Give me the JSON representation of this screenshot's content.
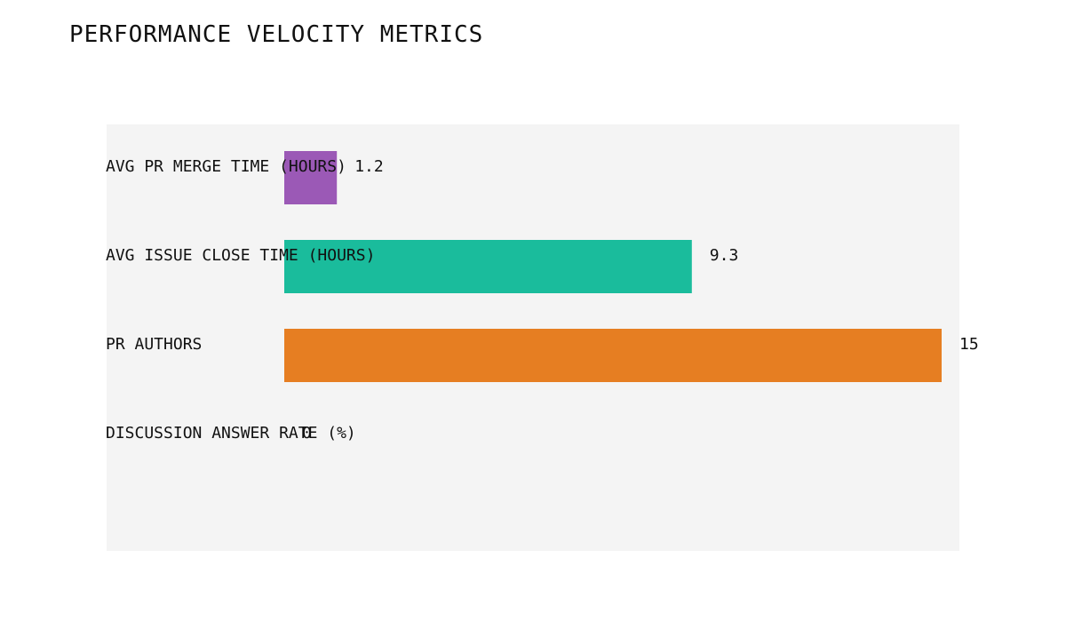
{
  "chart_data": {
    "type": "bar",
    "orientation": "horizontal",
    "title": "PERFORMANCE VELOCITY METRICS",
    "categories": [
      "AVG PR MERGE TIME (HOURS)",
      "AVG ISSUE CLOSE TIME (HOURS)",
      "PR AUTHORS",
      "DISCUSSION ANSWER RATE (%)"
    ],
    "values": [
      1.2,
      9.3,
      15,
      0
    ],
    "value_labels": [
      "1.2",
      "9.3",
      "15",
      "0"
    ],
    "colors": [
      "#9b59b6",
      "#1abc9c",
      "#e67e22",
      "#3498db"
    ],
    "xlim": [
      0,
      15
    ],
    "grid": false,
    "legend": "none"
  }
}
